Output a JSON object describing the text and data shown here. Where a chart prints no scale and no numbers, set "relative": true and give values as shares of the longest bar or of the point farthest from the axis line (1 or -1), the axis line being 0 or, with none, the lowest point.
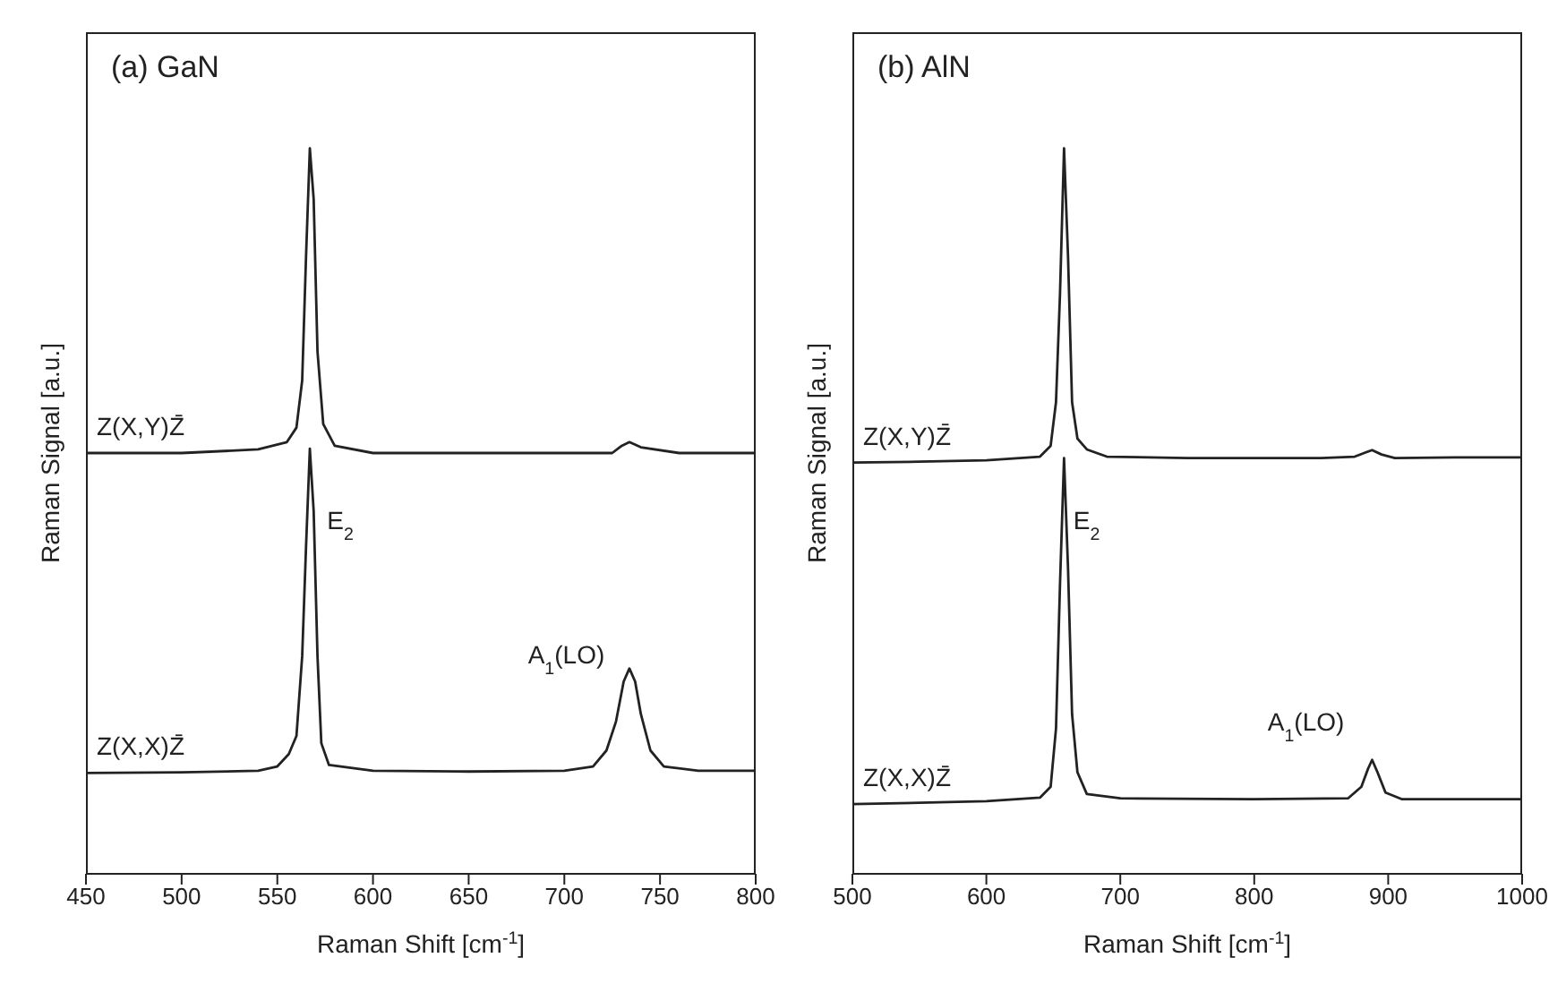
{
  "chart_data": [
    {
      "type": "line",
      "title": "(a) GaN",
      "xlabel": "Raman Shift [cm$^{-1}$]",
      "ylabel": "Raman Signal [a.u.]",
      "relative": true,
      "xlim": [
        450,
        800
      ],
      "xticks": [
        450,
        500,
        550,
        600,
        650,
        700,
        750,
        800
      ],
      "marker": "none",
      "line_style": "solid",
      "annotations": [
        "E$_{2}$",
        "A$_{1}$(LO)"
      ],
      "series": [
        {
          "name": "Z(X,Y)Z̄",
          "color": "#222222",
          "x": [
            450,
            500,
            540,
            555,
            560,
            563,
            565,
            567,
            569,
            571,
            574,
            580,
            600,
            700,
            725,
            730,
            734,
            740,
            760,
            800
          ],
          "values": [
            0.58,
            0.58,
            0.585,
            0.595,
            0.615,
            0.68,
            0.85,
            1.0,
            0.93,
            0.72,
            0.62,
            0.59,
            0.58,
            0.58,
            0.58,
            0.59,
            0.595,
            0.588,
            0.58,
            0.58
          ]
        },
        {
          "name": "Z(X,X)Z̄",
          "color": "#222222",
          "x": [
            450,
            500,
            540,
            550,
            556,
            560,
            563,
            565,
            567,
            569,
            571,
            573,
            577,
            600,
            650,
            700,
            715,
            722,
            727,
            731,
            734,
            737,
            740,
            745,
            752,
            770,
            800
          ],
          "values": [
            0.139,
            0.14,
            0.142,
            0.148,
            0.165,
            0.19,
            0.3,
            0.45,
            0.586,
            0.5,
            0.3,
            0.18,
            0.15,
            0.142,
            0.141,
            0.142,
            0.148,
            0.17,
            0.21,
            0.265,
            0.283,
            0.265,
            0.22,
            0.17,
            0.148,
            0.142,
            0.142
          ]
        }
      ]
    },
    {
      "type": "line",
      "title": "(b) AlN",
      "xlabel": "Raman Shift [cm$^{-1}$]",
      "ylabel": "Raman Signal [a.u.]",
      "relative": true,
      "xlim": [
        500,
        1000
      ],
      "xticks": [
        500,
        600,
        700,
        800,
        900,
        1000
      ],
      "marker": "none",
      "line_style": "solid",
      "annotations": [
        "E$_{2}$",
        "A$_{1}$(LO)"
      ],
      "series": [
        {
          "name": "Z(X,Y)Z̄",
          "color": "#222222",
          "x": [
            500,
            550,
            600,
            640,
            648,
            652,
            655,
            658,
            661,
            664,
            668,
            675,
            690,
            750,
            850,
            875,
            882,
            888,
            895,
            905,
            950,
            1000
          ],
          "values": [
            0.567,
            0.568,
            0.57,
            0.575,
            0.59,
            0.65,
            0.8,
            1.0,
            0.85,
            0.65,
            0.6,
            0.585,
            0.575,
            0.573,
            0.573,
            0.575,
            0.58,
            0.584,
            0.578,
            0.573,
            0.574,
            0.574
          ]
        },
        {
          "name": "Z(X,X)Z̄",
          "color": "#222222",
          "x": [
            500,
            550,
            600,
            640,
            648,
            652,
            655,
            658,
            661,
            664,
            668,
            675,
            700,
            800,
            870,
            880,
            885,
            888,
            892,
            898,
            910,
            1000
          ],
          "values": [
            0.096,
            0.098,
            0.1,
            0.105,
            0.12,
            0.2,
            0.4,
            0.573,
            0.42,
            0.22,
            0.14,
            0.11,
            0.104,
            0.103,
            0.104,
            0.12,
            0.145,
            0.157,
            0.14,
            0.112,
            0.103,
            0.103
          ]
        }
      ]
    }
  ]
}
